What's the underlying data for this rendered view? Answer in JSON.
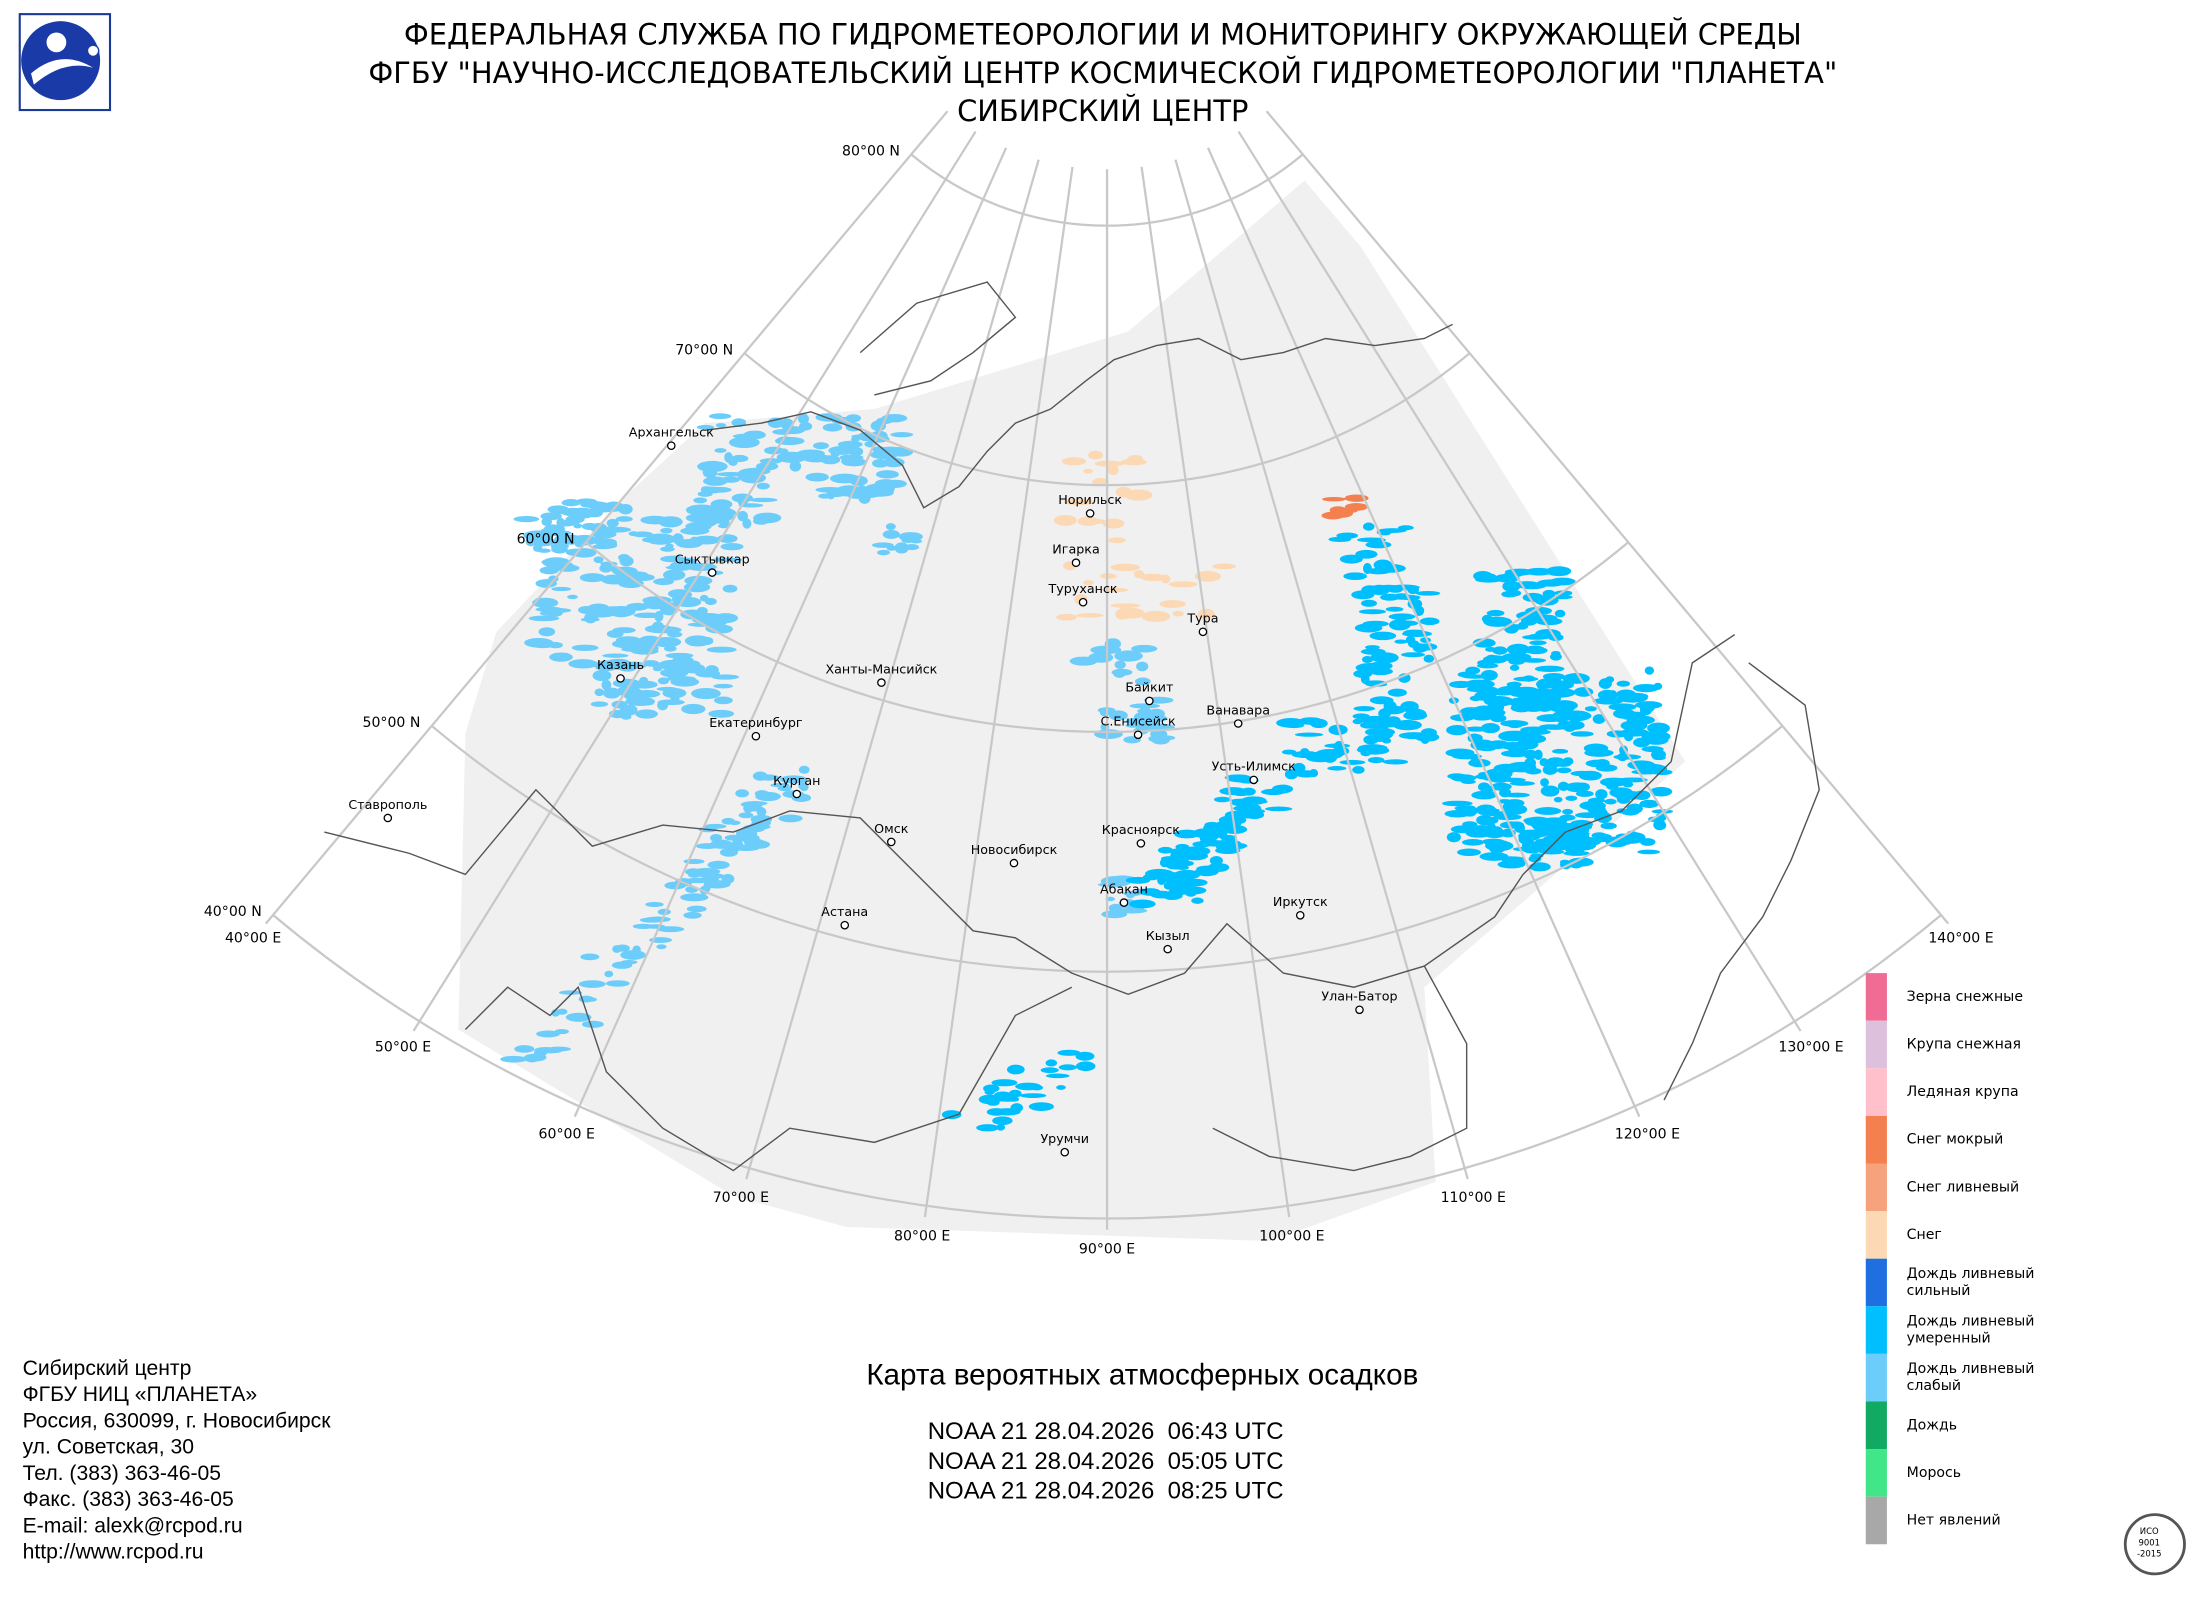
{
  "header": {
    "lines": [
      "ФЕДЕРАЛЬНАЯ СЛУЖБА ПО ГИДРОМЕТЕОРОЛОГИИ И МОНИТОРИНГУ ОКРУЖАЮЩЕЙ СРЕДЫ",
      "ФГБУ \"НАУЧНО-ИССЛЕДОВАТЕЛЬСКИЙ ЦЕНТР КОСМИЧЕСКОЙ ГИДРОМЕТЕОРОЛОГИИ \"ПЛАНЕТА\"",
      "СИБИРСКИЙ ЦЕНТР"
    ]
  },
  "graticule": {
    "latitudes": [
      "80°00 N",
      "70°00 N",
      "60°00 N",
      "50°00 N",
      "40°00 N"
    ],
    "longitudes": [
      "40°00 E",
      "50°00 E",
      "60°00 E",
      "70°00 E",
      "80°00 E",
      "90°00 E",
      "100°00 E",
      "110°00 E",
      "120°00 E",
      "130°00 E",
      "140°00 E"
    ]
  },
  "cities": [
    "Архангельск",
    "Сыктывкар",
    "Казань",
    "Ханты-Мансийск",
    "Екатеринбург",
    "Курган",
    "Ставрополь",
    "Омск",
    "Новосибирск",
    "Астана",
    "Норильск",
    "Игарка",
    "Туруханск",
    "Тура",
    "Байкит",
    "С.Енисейск",
    "Ванавара",
    "Усть-Илимск",
    "Красноярск",
    "Абакан",
    "Кызыл",
    "Иркутск",
    "Улан-Батор",
    "Урумчи"
  ],
  "legend": [
    {
      "lines": [
        "Зерна снежные"
      ],
      "color": "#f06c94"
    },
    {
      "lines": [
        "Крупа снежная"
      ],
      "color": "#dcc0dc"
    },
    {
      "lines": [
        "Ледяная крупа"
      ],
      "color": "#ffc0cc"
    },
    {
      "lines": [
        "Снег мокрый"
      ],
      "color": "#f47f4f"
    },
    {
      "lines": [
        "Снег ливневый"
      ],
      "color": "#f6a27c"
    },
    {
      "lines": [
        "Снег"
      ],
      "color": "#fcd9b4"
    },
    {
      "lines": [
        "Дождь ливневый",
        "сильный"
      ],
      "color": "#1f6fe0"
    },
    {
      "lines": [
        "Дождь ливневый",
        "умеренный"
      ],
      "color": "#00bfff"
    },
    {
      "lines": [
        "Дождь ливневый",
        "слабый"
      ],
      "color": "#6cccfa"
    },
    {
      "lines": [
        "Дождь"
      ],
      "color": "#10aa62"
    },
    {
      "lines": [
        "Морось"
      ],
      "color": "#40e688"
    },
    {
      "lines": [
        "Нет явлений"
      ],
      "color": "#a8a8a8"
    }
  ],
  "footer": {
    "contacts": [
      "Сибирский центр",
      "ФГБУ НИЦ «ПЛАНЕТА»",
      "Россия, 630099, г. Новосибирск",
      "ул. Советская, 30",
      "Тел. (383) 363-46-05",
      "Факс. (383) 363-46-05",
      "E-mail: alexk@rcpod.ru",
      "http://www.rcpod.ru"
    ],
    "title": "Карта вероятных атмосферных осадков",
    "passes": [
      "NOAA 21 28.04.2026  06:43 UTC",
      "NOAA 21 28.04.2026  05:05 UTC",
      "NOAA 21 28.04.2026  08:25 UTC"
    ]
  },
  "certificate": {
    "lines": [
      "ИСО",
      "9001",
      "-2015"
    ]
  }
}
